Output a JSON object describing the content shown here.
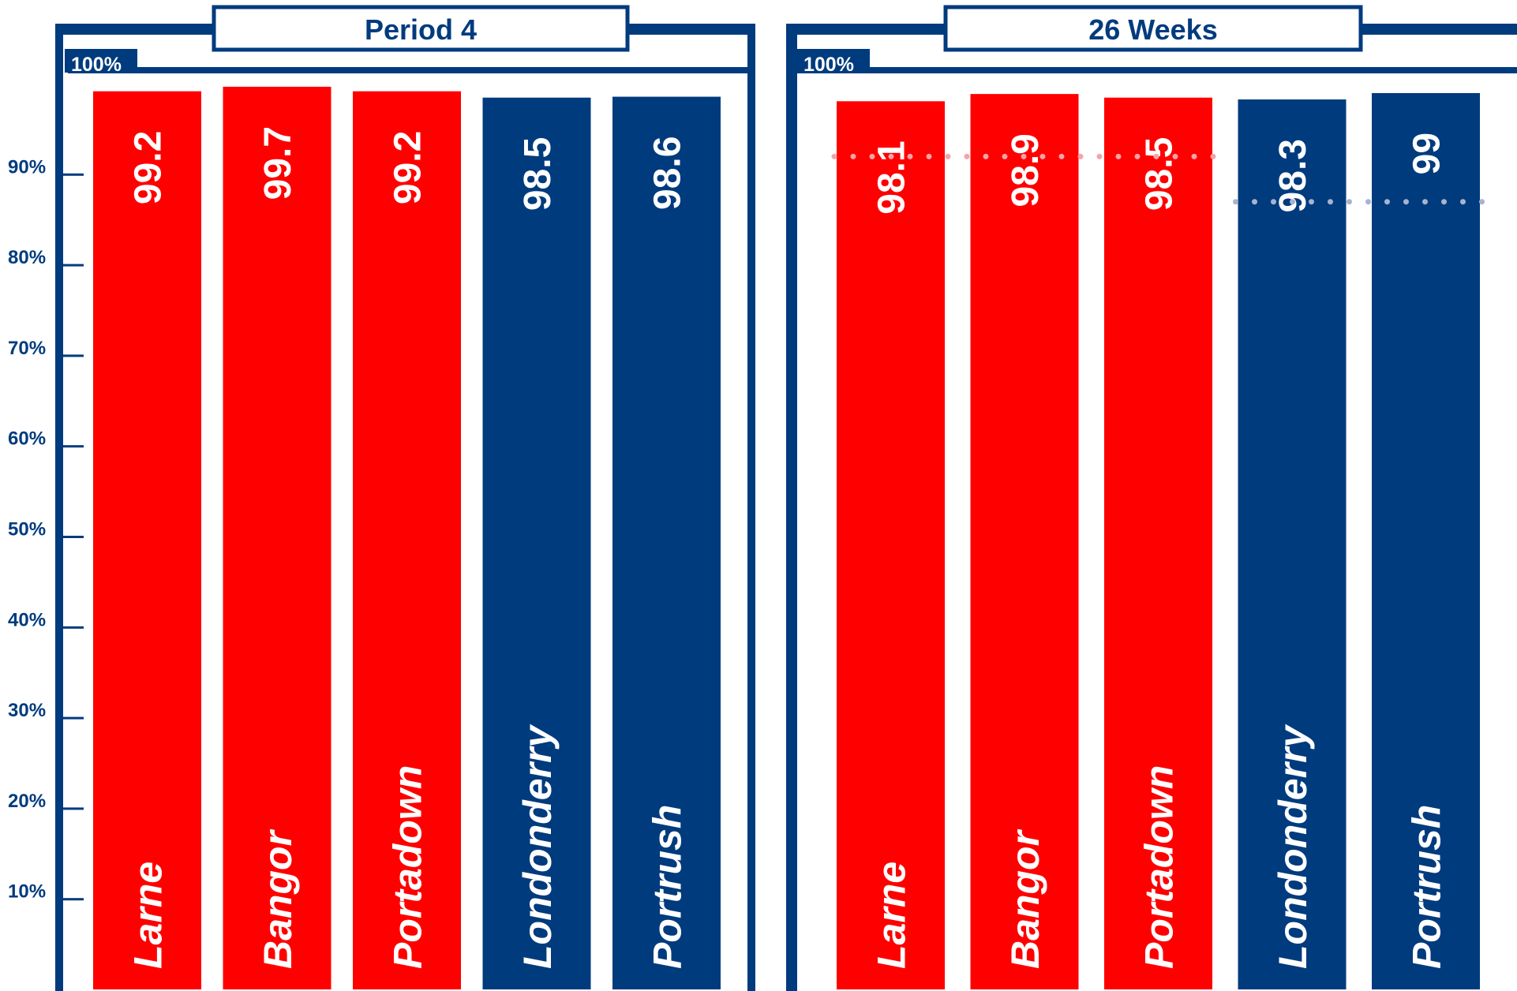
{
  "colors": {
    "navy": "#003b7e",
    "red": "#ff0000",
    "red_target": "#f4a3a8",
    "navy_target": "#a7b3cf"
  },
  "chart_data": {
    "type": "bar",
    "y_axis": {
      "ticks": [
        10,
        20,
        30,
        40,
        50,
        60,
        70,
        80,
        90
      ],
      "tick_labels": [
        "10%",
        "20%",
        "30%",
        "40%",
        "50%",
        "60%",
        "70%",
        "80%",
        "90%"
      ],
      "top_label": "100%",
      "ylim": [
        0,
        100
      ]
    },
    "panels": [
      {
        "title": "Period 4",
        "top_label": "100%",
        "categories": [
          "Larne",
          "Bangor",
          "Portadown",
          "Londonderry",
          "Portrush"
        ],
        "values": [
          99.2,
          99.7,
          99.2,
          98.5,
          98.6
        ],
        "value_labels": [
          "99.2",
          "99.7",
          "99.2",
          "98.5",
          "98.6"
        ],
        "bar_colors": [
          "red",
          "red",
          "red",
          "navy",
          "navy"
        ],
        "targets": []
      },
      {
        "title": "26 Weeks",
        "top_label": "100%",
        "categories": [
          "Larne",
          "Bangor",
          "Portadown",
          "Londonderry",
          "Portrush"
        ],
        "values": [
          98.1,
          98.9,
          98.5,
          98.3,
          99
        ],
        "value_labels": [
          "98.1",
          "98.9",
          "98.5",
          "98.3",
          "99"
        ],
        "bar_colors": [
          "red",
          "red",
          "red",
          "navy",
          "navy"
        ],
        "targets": [
          {
            "from": 0,
            "to": 2,
            "value": 92,
            "color": "red_target"
          },
          {
            "from": 3,
            "to": 4,
            "value": 87,
            "color": "navy_target"
          }
        ]
      }
    ]
  }
}
